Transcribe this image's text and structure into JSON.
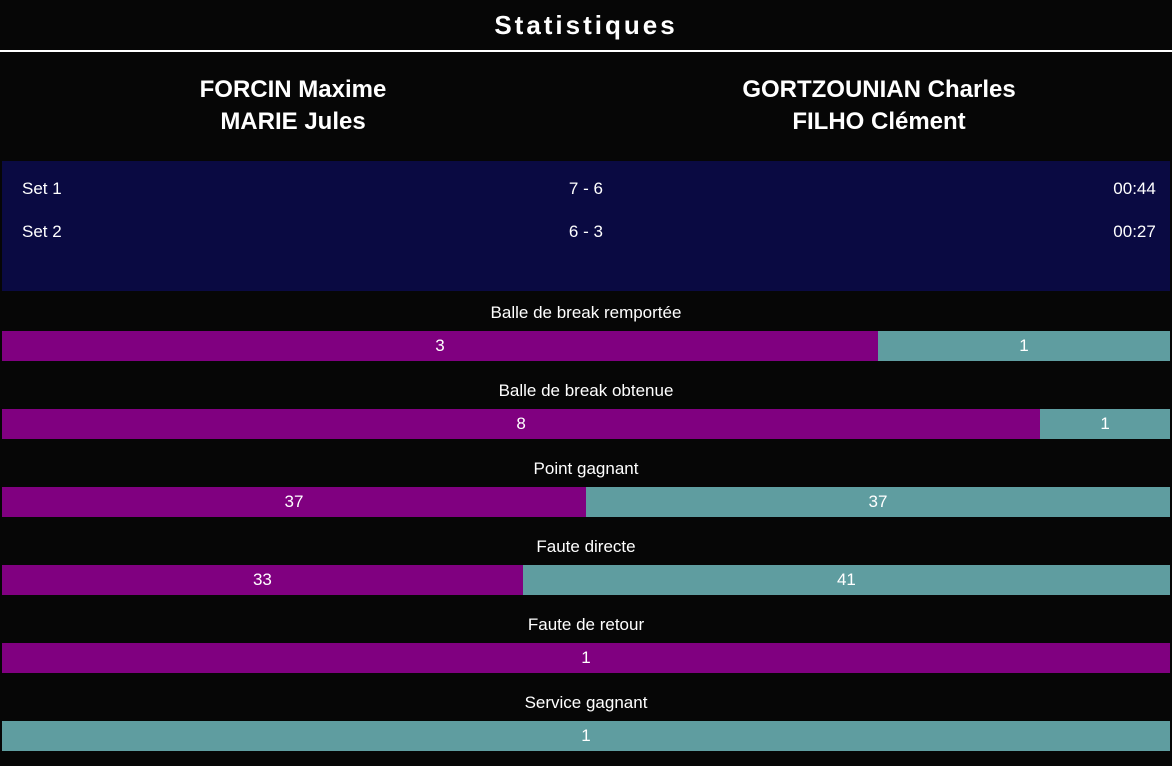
{
  "title": "Statistiques",
  "teams": {
    "left": {
      "line1": "FORCIN Maxime",
      "line2": "MARIE Jules"
    },
    "right": {
      "line1": "GORTZOUNIAN Charles",
      "line2": "FILHO Clément"
    }
  },
  "sets": [
    {
      "label": "Set 1",
      "score": "7 - 6",
      "duration": "00:44"
    },
    {
      "label": "Set 2",
      "score": "6 - 3",
      "duration": "00:27"
    }
  ],
  "colors": {
    "background": "#060606",
    "sets_panel": "#0a0a42",
    "left_bar": "#800080",
    "right_bar": "#5f9da0",
    "text": "#ffffff",
    "divider": "#ffffff"
  },
  "chart_data": {
    "type": "bar",
    "orientation": "horizontal-split",
    "title": "Statistiques",
    "categories": [
      "Balle de break remportée",
      "Balle de break obtenue",
      "Point gagnant",
      "Faute directe",
      "Faute de retour",
      "Service gagnant"
    ],
    "series": [
      {
        "name": "FORCIN Maxime / MARIE Jules",
        "color": "#800080",
        "values": [
          3,
          8,
          37,
          33,
          1,
          0
        ]
      },
      {
        "name": "GORTZOUNIAN Charles / FILHO Clément",
        "color": "#5f9da0",
        "values": [
          1,
          1,
          37,
          41,
          0,
          1
        ]
      }
    ]
  }
}
